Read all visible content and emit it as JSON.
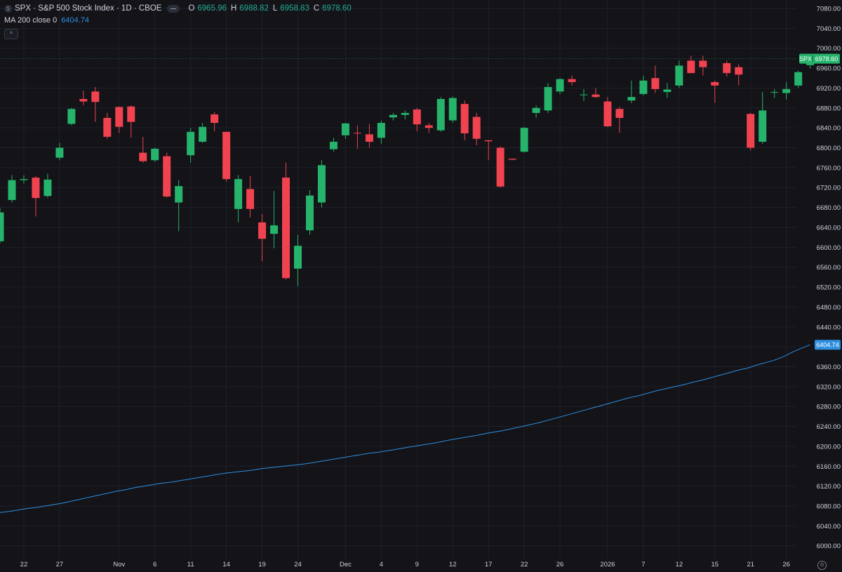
{
  "legend": {
    "symbol_title": "SPX · S&P 500 Stock Index · 1D · CBOE",
    "ohlc": [
      {
        "key": "O",
        "value": "6965.96"
      },
      {
        "key": "H",
        "value": "6988.82"
      },
      {
        "key": "L",
        "value": "6958.83"
      },
      {
        "key": "C",
        "value": "6978.60"
      }
    ],
    "ma_label": "MA 200 close 0",
    "ma_value": "6404.74"
  },
  "price_label": {
    "symbol": "SPX",
    "value": "6978.60"
  },
  "ma_label_value": "6404.74",
  "colors": {
    "background": "#131318",
    "up": "#26b36b",
    "down": "#f0434f",
    "ma": "#2f8fe0",
    "axis_text": "#d1d4dc",
    "grid": "#1f222b"
  },
  "chart_data": {
    "type": "candlestick",
    "ylim": [
      5980,
      7100
    ],
    "y_ticks": [
      "7080.00",
      "7040.00",
      "7000.00",
      "6960.00",
      "6920.00",
      "6880.00",
      "6840.00",
      "6800.00",
      "6760.00",
      "6720.00",
      "6680.00",
      "6640.00",
      "6600.00",
      "6560.00",
      "6520.00",
      "6480.00",
      "6440.00",
      "6400.00",
      "6360.00",
      "6320.00",
      "6280.00",
      "6240.00",
      "6200.00",
      "6160.00",
      "6120.00",
      "6080.00",
      "6040.00",
      "6000.00"
    ],
    "x_ticks": [
      {
        "label": "22",
        "bar": 2
      },
      {
        "label": "27",
        "bar": 5
      },
      {
        "label": "Nov",
        "bar": 10
      },
      {
        "label": "6",
        "bar": 13
      },
      {
        "label": "11",
        "bar": 16
      },
      {
        "label": "14",
        "bar": 19
      },
      {
        "label": "19",
        "bar": 22
      },
      {
        "label": "24",
        "bar": 25
      },
      {
        "label": "Dec",
        "bar": 29
      },
      {
        "label": "4",
        "bar": 32
      },
      {
        "label": "9",
        "bar": 35
      },
      {
        "label": "12",
        "bar": 38
      },
      {
        "label": "17",
        "bar": 41
      },
      {
        "label": "22",
        "bar": 44
      },
      {
        "label": "26",
        "bar": 47
      },
      {
        "label": "2026",
        "bar": 51
      },
      {
        "label": "7",
        "bar": 54
      },
      {
        "label": "12",
        "bar": 57
      },
      {
        "label": "15",
        "bar": 60
      },
      {
        "label": "21",
        "bar": 63
      },
      {
        "label": "26",
        "bar": 66
      }
    ],
    "candles": [
      {
        "o": 6612,
        "h": 6680,
        "l": 6608,
        "c": 6670
      },
      {
        "o": 6695,
        "h": 6745,
        "l": 6690,
        "c": 6735
      },
      {
        "o": 6735,
        "h": 6745,
        "l": 6728,
        "c": 6737
      },
      {
        "o": 6740,
        "h": 6743,
        "l": 6662,
        "c": 6699
      },
      {
        "o": 6703,
        "h": 6748,
        "l": 6700,
        "c": 6736
      },
      {
        "o": 6780,
        "h": 6810,
        "l": 6775,
        "c": 6800
      },
      {
        "o": 6848,
        "h": 6880,
        "l": 6845,
        "c": 6878
      },
      {
        "o": 6898,
        "h": 6915,
        "l": 6885,
        "c": 6893
      },
      {
        "o": 6913,
        "h": 6922,
        "l": 6852,
        "c": 6892
      },
      {
        "o": 6860,
        "h": 6870,
        "l": 6818,
        "c": 6822
      },
      {
        "o": 6882,
        "h": 6883,
        "l": 6830,
        "c": 6842
      },
      {
        "o": 6883,
        "h": 6885,
        "l": 6820,
        "c": 6852
      },
      {
        "o": 6790,
        "h": 6822,
        "l": 6770,
        "c": 6773
      },
      {
        "o": 6775,
        "h": 6800,
        "l": 6772,
        "c": 6798
      },
      {
        "o": 6783,
        "h": 6790,
        "l": 6700,
        "c": 6702
      },
      {
        "o": 6690,
        "h": 6735,
        "l": 6632,
        "c": 6723
      },
      {
        "o": 6785,
        "h": 6840,
        "l": 6770,
        "c": 6832
      },
      {
        "o": 6812,
        "h": 6850,
        "l": 6810,
        "c": 6842
      },
      {
        "o": 6867,
        "h": 6872,
        "l": 6833,
        "c": 6850
      },
      {
        "o": 6832,
        "h": 6832,
        "l": 6732,
        "c": 6737
      },
      {
        "o": 6677,
        "h": 6745,
        "l": 6650,
        "c": 6737
      },
      {
        "o": 6717,
        "h": 6743,
        "l": 6660,
        "c": 6677
      },
      {
        "o": 6650,
        "h": 6667,
        "l": 6572,
        "c": 6617
      },
      {
        "o": 6627,
        "h": 6713,
        "l": 6598,
        "c": 6644
      },
      {
        "o": 6740,
        "h": 6770,
        "l": 6535,
        "c": 6538
      },
      {
        "o": 6557,
        "h": 6625,
        "l": 6522,
        "c": 6603
      },
      {
        "o": 6634,
        "h": 6715,
        "l": 6625,
        "c": 6704
      },
      {
        "o": 6690,
        "h": 6775,
        "l": 6680,
        "c": 6765
      },
      {
        "o": 6797,
        "h": 6820,
        "l": 6792,
        "c": 6812
      },
      {
        "o": 6825,
        "h": 6850,
        "l": 6818,
        "c": 6849
      },
      {
        "o": 6830,
        "h": 6845,
        "l": 6798,
        "c": 6829
      },
      {
        "o": 6827,
        "h": 6848,
        "l": 6800,
        "c": 6812
      },
      {
        "o": 6820,
        "h": 6855,
        "l": 6808,
        "c": 6850
      },
      {
        "o": 6861,
        "h": 6870,
        "l": 6855,
        "c": 6866
      },
      {
        "o": 6866,
        "h": 6875,
        "l": 6857,
        "c": 6870
      },
      {
        "o": 6877,
        "h": 6880,
        "l": 6833,
        "c": 6847
      },
      {
        "o": 6845,
        "h": 6850,
        "l": 6830,
        "c": 6840
      },
      {
        "o": 6835,
        "h": 6902,
        "l": 6832,
        "c": 6898
      },
      {
        "o": 6855,
        "h": 6903,
        "l": 6850,
        "c": 6900
      },
      {
        "o": 6888,
        "h": 6895,
        "l": 6815,
        "c": 6829
      },
      {
        "o": 6862,
        "h": 6870,
        "l": 6805,
        "c": 6818
      },
      {
        "o": 6815,
        "h": 6815,
        "l": 6775,
        "c": 6813
      },
      {
        "o": 6800,
        "h": 6803,
        "l": 6720,
        "c": 6722
      },
      {
        "o": 6778,
        "h": 6778,
        "l": 6775,
        "c": 6776
      },
      {
        "o": 6792,
        "h": 6842,
        "l": 6790,
        "c": 6840
      },
      {
        "o": 6870,
        "h": 6885,
        "l": 6860,
        "c": 6880
      },
      {
        "o": 6875,
        "h": 6930,
        "l": 6870,
        "c": 6922
      },
      {
        "o": 6913,
        "h": 6940,
        "l": 6908,
        "c": 6938
      },
      {
        "o": 6938,
        "h": 6945,
        "l": 6925,
        "c": 6932
      },
      {
        "o": 6907,
        "h": 6918,
        "l": 6894,
        "c": 6907
      },
      {
        "o": 6907,
        "h": 6920,
        "l": 6900,
        "c": 6902
      },
      {
        "o": 6893,
        "h": 6902,
        "l": 6842,
        "c": 6843
      },
      {
        "o": 6878,
        "h": 6882,
        "l": 6830,
        "c": 6860
      },
      {
        "o": 6895,
        "h": 6935,
        "l": 6890,
        "c": 6902
      },
      {
        "o": 6908,
        "h": 6945,
        "l": 6905,
        "c": 6935
      },
      {
        "o": 6940,
        "h": 6965,
        "l": 6910,
        "c": 6918
      },
      {
        "o": 6912,
        "h": 6930,
        "l": 6900,
        "c": 6917
      },
      {
        "o": 6925,
        "h": 6975,
        "l": 6920,
        "c": 6965
      },
      {
        "o": 6975,
        "h": 6985,
        "l": 6950,
        "c": 6950
      },
      {
        "o": 6975,
        "h": 6985,
        "l": 6945,
        "c": 6962
      },
      {
        "o": 6932,
        "h": 6935,
        "l": 6890,
        "c": 6925
      },
      {
        "o": 6970,
        "h": 6975,
        "l": 6943,
        "c": 6950
      },
      {
        "o": 6962,
        "h": 6968,
        "l": 6925,
        "c": 6947
      },
      {
        "o": 6868,
        "h": 6870,
        "l": 6795,
        "c": 6800
      },
      {
        "o": 6812,
        "h": 6912,
        "l": 6808,
        "c": 6875
      },
      {
        "o": 6912,
        "h": 6918,
        "l": 6900,
        "c": 6912
      },
      {
        "o": 6910,
        "h": 6932,
        "l": 6897,
        "c": 6918
      },
      {
        "o": 6925,
        "h": 6955,
        "l": 6920,
        "c": 6952
      },
      {
        "o": 6966,
        "h": 6989,
        "l": 6959,
        "c": 6979
      }
    ],
    "ma200": [
      6067,
      6069,
      6072,
      6075,
      6077,
      6080,
      6083,
      6086,
      6090,
      6094,
      6098,
      6102,
      6106,
      6110,
      6113,
      6117,
      6120,
      6123,
      6126,
      6128,
      6131,
      6134,
      6137,
      6140,
      6143,
      6146,
      6148,
      6150,
      6152,
      6155,
      6157,
      6159,
      6161,
      6163,
      6165,
      6168,
      6171,
      6174,
      6177,
      6180,
      6183,
      6186,
      6188,
      6191,
      6194,
      6197,
      6200,
      6203,
      6206,
      6209,
      6213,
      6216,
      6219,
      6222,
      6226,
      6229,
      6232,
      6236,
      6240,
      6244,
      6248,
      6253,
      6258,
      6263,
      6268,
      6273,
      6278,
      6283,
      6288,
      6293,
      6298,
      6302,
      6307,
      6312,
      6316,
      6320,
      6324,
      6329,
      6333,
      6338,
      6343,
      6348,
      6353,
      6357,
      6363,
      6368,
      6373,
      6380,
      6389,
      6397,
      6404
    ]
  }
}
